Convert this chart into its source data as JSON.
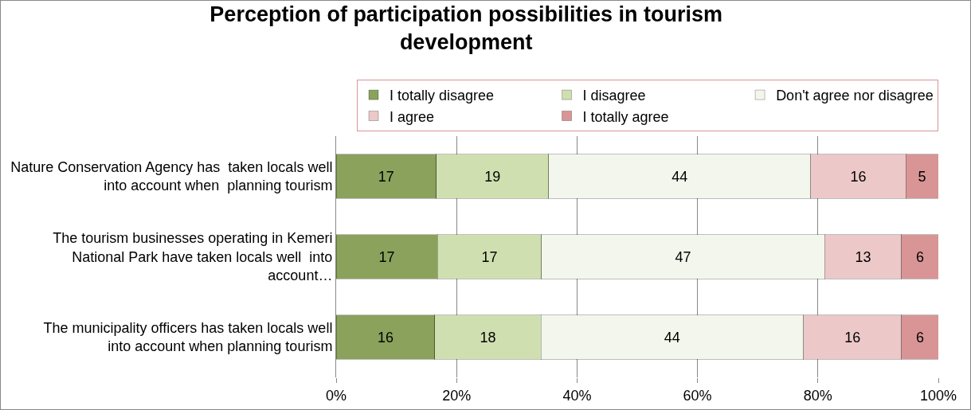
{
  "chart_data": {
    "type": "bar",
    "orientation": "horizontal",
    "stacked": true,
    "title": "Perception of participation possibilities in tourism development",
    "categories": [
      "Nature Conservation Agency has  taken locals well into account when  planning tourism",
      "The tourism businesses operating in Kemeri National Park have taken locals well  into account…",
      "The municipality officers has taken locals well into account when planning tourism"
    ],
    "series": [
      {
        "name": "I totally disagree",
        "color": "#8aa25c",
        "values": [
          16.6,
          16.8,
          16.4
        ],
        "value_labels": [
          "17",
          "17",
          "16"
        ]
      },
      {
        "name": "I disagree",
        "color": "#d0dfb0",
        "values": [
          18.7,
          17.3,
          17.6
        ],
        "value_labels": [
          "19",
          "17",
          "18"
        ]
      },
      {
        "name": "Don't agree nor disagree",
        "color": "#f3f6ec",
        "values": [
          43.5,
          47.0,
          43.6
        ],
        "value_labels": [
          "44",
          "47",
          "44"
        ]
      },
      {
        "name": "I agree",
        "color": "#ecc8c8",
        "values": [
          15.8,
          12.8,
          16.3
        ],
        "value_labels": [
          "16",
          "13",
          "16"
        ]
      },
      {
        "name": "I totally agree",
        "color": "#d99595",
        "values": [
          5.4,
          6.1,
          6.1
        ],
        "value_labels": [
          "5",
          "6",
          "6"
        ]
      }
    ],
    "xlim": [
      0,
      100
    ],
    "xticks": [
      {
        "value": 0,
        "label": "0%"
      },
      {
        "value": 20,
        "label": "20%"
      },
      {
        "value": 40,
        "label": "40%"
      },
      {
        "value": 60,
        "label": "60%"
      },
      {
        "value": 80,
        "label": "80%"
      },
      {
        "value": 100,
        "label": "100%"
      }
    ],
    "grid": "x",
    "legend": "top"
  }
}
